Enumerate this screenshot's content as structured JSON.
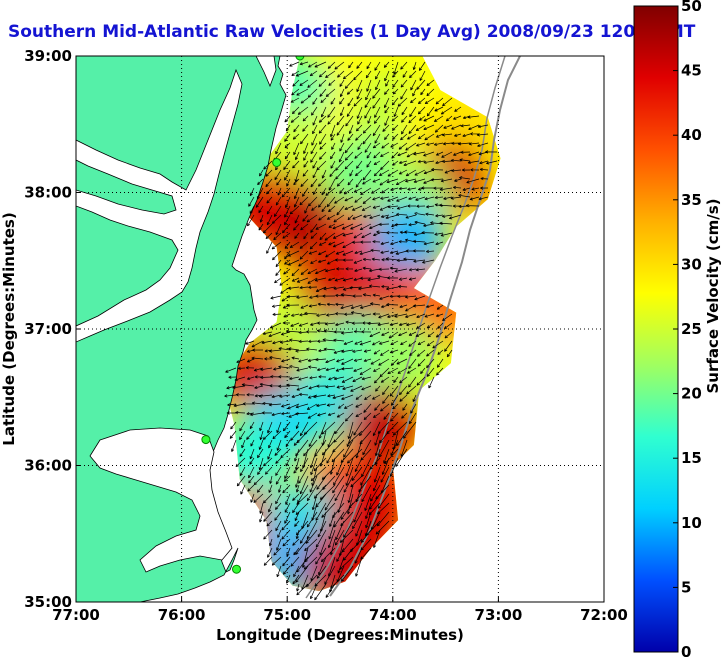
{
  "title": "Southern Mid-Atlantic Raw Velocities (1 Day Avg) 2008/09/23 1200 GMT",
  "map": {
    "xlabel": "Longitude (Degrees:Minutes)",
    "ylabel": "Latitude (Degrees:Minutes)",
    "lon_range": [
      -77,
      -72
    ],
    "lat_range": [
      35,
      39
    ],
    "x_ticks": [
      {
        "value": -77,
        "label": "77:00"
      },
      {
        "value": -76,
        "label": "76:00"
      },
      {
        "value": -75,
        "label": "75:00"
      },
      {
        "value": -74,
        "label": "74:00"
      },
      {
        "value": -73,
        "label": "73:00"
      },
      {
        "value": -72,
        "label": "72:00"
      }
    ],
    "y_ticks": [
      {
        "value": 35,
        "label": "35:00"
      },
      {
        "value": 36,
        "label": "36:00"
      },
      {
        "value": 37,
        "label": "37:00"
      },
      {
        "value": 38,
        "label": "38:00"
      },
      {
        "value": 39,
        "label": "39:00"
      }
    ],
    "grid": "dotted",
    "land_color": "#55f0a8",
    "stations": [
      {
        "lon": -74.88,
        "lat": 39.0
      },
      {
        "lon": -75.1,
        "lat": 38.22
      },
      {
        "lon": -75.77,
        "lat": 36.19
      },
      {
        "lon": -75.48,
        "lat": 35.24
      }
    ]
  },
  "colorbar": {
    "label": "Surface Velocity (cm/s)",
    "min": 0,
    "max": 50,
    "ticks": [
      "0",
      "5",
      "10",
      "15",
      "20",
      "25",
      "30",
      "35",
      "40",
      "45",
      "50"
    ],
    "colormap": [
      "#0000aa",
      "#0050ff",
      "#00d0ff",
      "#30ffd0",
      "#a0ff60",
      "#ffff00",
      "#ffb000",
      "#ff5000",
      "#e00000",
      "#800000"
    ]
  },
  "speed_field": [
    {
      "lon": -74.55,
      "lat": 38.72,
      "speed": 28
    },
    {
      "lon": -74.0,
      "lat": 38.62,
      "speed": 24
    },
    {
      "lon": -73.6,
      "lat": 38.55,
      "speed": 28
    },
    {
      "lon": -73.3,
      "lat": 38.45,
      "speed": 30
    },
    {
      "lon": -73.45,
      "lat": 38.1,
      "speed": 45
    },
    {
      "lon": -74.3,
      "lat": 38.15,
      "speed": 20
    },
    {
      "lon": -73.8,
      "lat": 37.95,
      "speed": 22
    },
    {
      "lon": -74.95,
      "lat": 38.75,
      "speed": 18
    },
    {
      "lon": -75.0,
      "lat": 38.35,
      "speed": 25
    },
    {
      "lon": -74.9,
      "lat": 37.8,
      "speed": 48
    },
    {
      "lon": -75.2,
      "lat": 37.9,
      "speed": 45
    },
    {
      "lon": -74.3,
      "lat": 37.62,
      "speed": 42
    },
    {
      "lon": -73.85,
      "lat": 37.65,
      "speed": 10
    },
    {
      "lon": -74.6,
      "lat": 37.25,
      "speed": 45
    },
    {
      "lon": -74.0,
      "lat": 37.2,
      "speed": 44
    },
    {
      "lon": -73.6,
      "lat": 37.15,
      "speed": 38
    },
    {
      "lon": -75.0,
      "lat": 36.95,
      "speed": 24
    },
    {
      "lon": -74.3,
      "lat": 36.85,
      "speed": 18
    },
    {
      "lon": -73.9,
      "lat": 36.8,
      "speed": 22
    },
    {
      "lon": -75.3,
      "lat": 36.65,
      "speed": 45
    },
    {
      "lon": -74.65,
      "lat": 36.45,
      "speed": 14
    },
    {
      "lon": -74.1,
      "lat": 36.3,
      "speed": 46
    },
    {
      "lon": -75.1,
      "lat": 36.25,
      "speed": 12
    },
    {
      "lon": -75.35,
      "lat": 36.05,
      "speed": 16
    },
    {
      "lon": -74.5,
      "lat": 35.8,
      "speed": 40
    },
    {
      "lon": -74.2,
      "lat": 35.75,
      "speed": 44
    },
    {
      "lon": -75.35,
      "lat": 35.55,
      "speed": 40
    },
    {
      "lon": -74.85,
      "lat": 35.6,
      "speed": 14
    },
    {
      "lon": -74.9,
      "lat": 35.3,
      "speed": 10
    },
    {
      "lon": -74.5,
      "lat": 35.25,
      "speed": 46
    },
    {
      "lon": -74.3,
      "lat": 35.5,
      "speed": 45
    }
  ]
}
